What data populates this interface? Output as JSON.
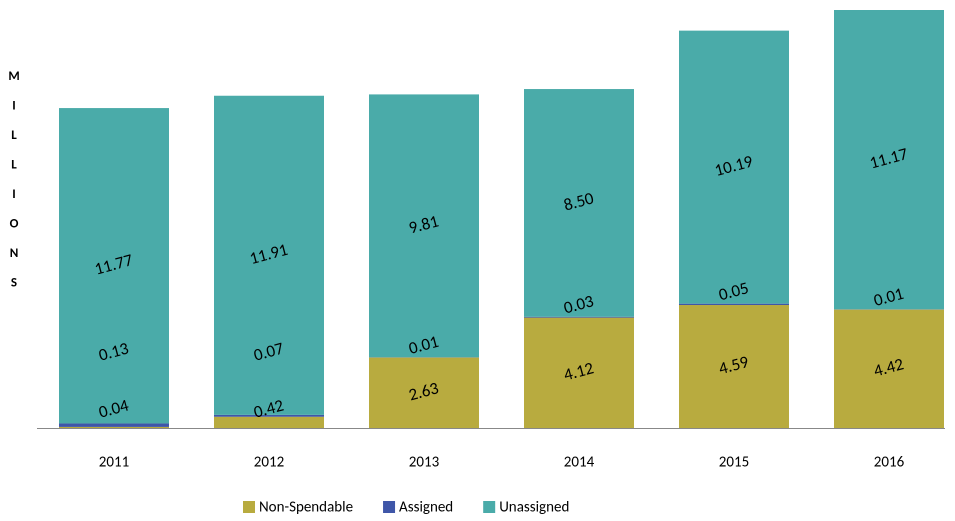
{
  "chart_data": {
    "type": "stacked_bar",
    "y_axis_label": "MILLIONS",
    "categories": [
      "2011",
      "2012",
      "2013",
      "2014",
      "2015",
      "2016"
    ],
    "series": [
      {
        "name": "Non-Spendable",
        "color": "#b8ab3f",
        "values": [
          0.04,
          0.42,
          2.63,
          4.12,
          4.59,
          4.42
        ],
        "value_labels": [
          "0.04",
          "0.42",
          "2.63",
          "4.12",
          "4.59",
          "4.42"
        ]
      },
      {
        "name": "Assigned",
        "color": "#3f56a8",
        "values": [
          0.13,
          0.07,
          0.01,
          0.03,
          0.05,
          0.01
        ],
        "value_labels": [
          "0.13",
          "0.07",
          "0.01",
          "0.03",
          "0.05",
          "0.01"
        ]
      },
      {
        "name": "Unassigned",
        "color": "#4aaba9",
        "values": [
          11.77,
          11.91,
          9.81,
          8.5,
          10.19,
          11.17
        ],
        "value_labels": [
          "11.77",
          "11.91",
          "9.81",
          "8.50",
          "10.19",
          "11.17"
        ]
      }
    ],
    "legend": "bottom"
  }
}
